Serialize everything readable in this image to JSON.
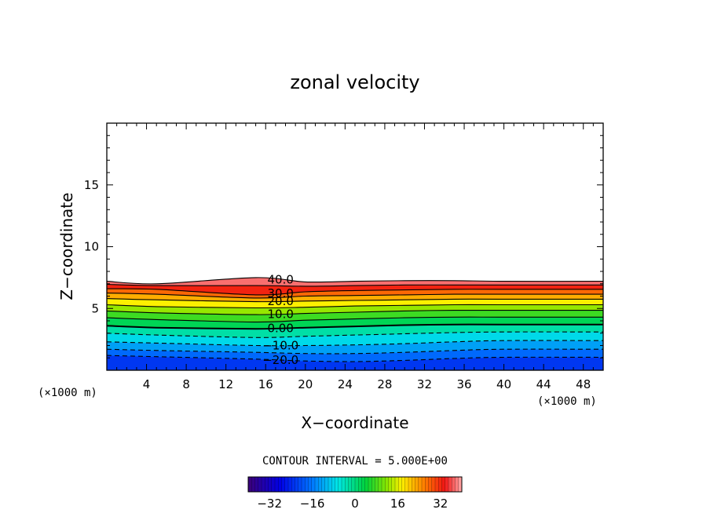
{
  "chart_data": {
    "type": "contour",
    "title": "zonal velocity",
    "xlabel": "X−coordinate",
    "ylabel": "Z−coordinate",
    "x_unit_left": "(×1000 m)",
    "x_unit_right": "(×1000 m)",
    "xlim": [
      0,
      50
    ],
    "ylim": [
      0,
      20
    ],
    "x_ticks": [
      4,
      8,
      12,
      16,
      20,
      24,
      28,
      32,
      36,
      40,
      44,
      48
    ],
    "x_tick_labels": [
      "4",
      "8",
      "12",
      "16",
      "20",
      "24",
      "28",
      "32",
      "36",
      "40",
      "44",
      "48"
    ],
    "y_ticks": [
      5,
      10,
      15
    ],
    "y_tick_labels": [
      "5",
      "10",
      "15"
    ],
    "contour_interval_text": "CONTOUR INTERVAL = 5.000E+00",
    "contour_interval": 5,
    "negative_contours": "dashed",
    "contour_levels": [
      {
        "value": -20,
        "label": "−20.0",
        "z": [
          1.2,
          1.1,
          0.9,
          0.75,
          0.7,
          0.8,
          0.95,
          1.05,
          1.05
        ]
      },
      {
        "value": -15,
        "label": "",
        "z": [
          1.7,
          1.6,
          1.45,
          1.35,
          1.35,
          1.45,
          1.6,
          1.7,
          1.7
        ]
      },
      {
        "value": -10,
        "label": "−10.0",
        "z": [
          2.3,
          2.2,
          2.0,
          2.0,
          2.05,
          2.15,
          2.3,
          2.4,
          2.4
        ]
      },
      {
        "value": -5,
        "label": "",
        "z": [
          3.0,
          2.85,
          2.65,
          2.75,
          2.85,
          2.95,
          3.05,
          3.1,
          3.1
        ]
      },
      {
        "value": 0,
        "label": "0.00",
        "z": [
          3.6,
          3.45,
          3.35,
          3.45,
          3.55,
          3.65,
          3.7,
          3.7,
          3.7
        ]
      },
      {
        "value": 5,
        "label": "",
        "z": [
          4.25,
          4.1,
          3.9,
          4.05,
          4.15,
          4.25,
          4.3,
          4.3,
          4.3
        ]
      },
      {
        "value": 10,
        "label": "10.0",
        "z": [
          4.8,
          4.65,
          4.5,
          4.6,
          4.7,
          4.8,
          4.85,
          4.85,
          4.85
        ]
      },
      {
        "value": 15,
        "label": "",
        "z": [
          5.3,
          5.15,
          5.05,
          5.1,
          5.2,
          5.25,
          5.3,
          5.3,
          5.3
        ]
      },
      {
        "value": 20,
        "label": "20.0",
        "z": [
          5.8,
          5.7,
          5.55,
          5.6,
          5.65,
          5.7,
          5.75,
          5.75,
          5.75
        ]
      },
      {
        "value": 25,
        "label": "",
        "z": [
          6.25,
          6.15,
          5.85,
          6.0,
          6.05,
          6.1,
          6.15,
          6.15,
          6.15
        ]
      },
      {
        "value": 30,
        "label": "30.0",
        "z": [
          6.6,
          6.55,
          6.1,
          6.35,
          6.45,
          6.5,
          6.55,
          6.55,
          6.55
        ]
      },
      {
        "value": 35,
        "label": "",
        "z": [
          6.95,
          6.85,
          6.85,
          6.8,
          6.85,
          6.9,
          6.9,
          6.9,
          6.9
        ]
      },
      {
        "value": 40,
        "label": "40.0",
        "z": [
          7.2,
          7.0,
          7.5,
          7.15,
          7.2,
          7.25,
          7.25,
          7.2,
          7.2
        ]
      }
    ],
    "contour_x": [
      0,
      5,
      15,
      20,
      25,
      30,
      35,
      40,
      50
    ],
    "colorbar": {
      "min": -40,
      "max": 40,
      "ticks": [
        -32,
        -16,
        0,
        16,
        32
      ],
      "tick_labels": [
        "−32",
        "−16",
        "0",
        "16",
        "32"
      ]
    }
  }
}
